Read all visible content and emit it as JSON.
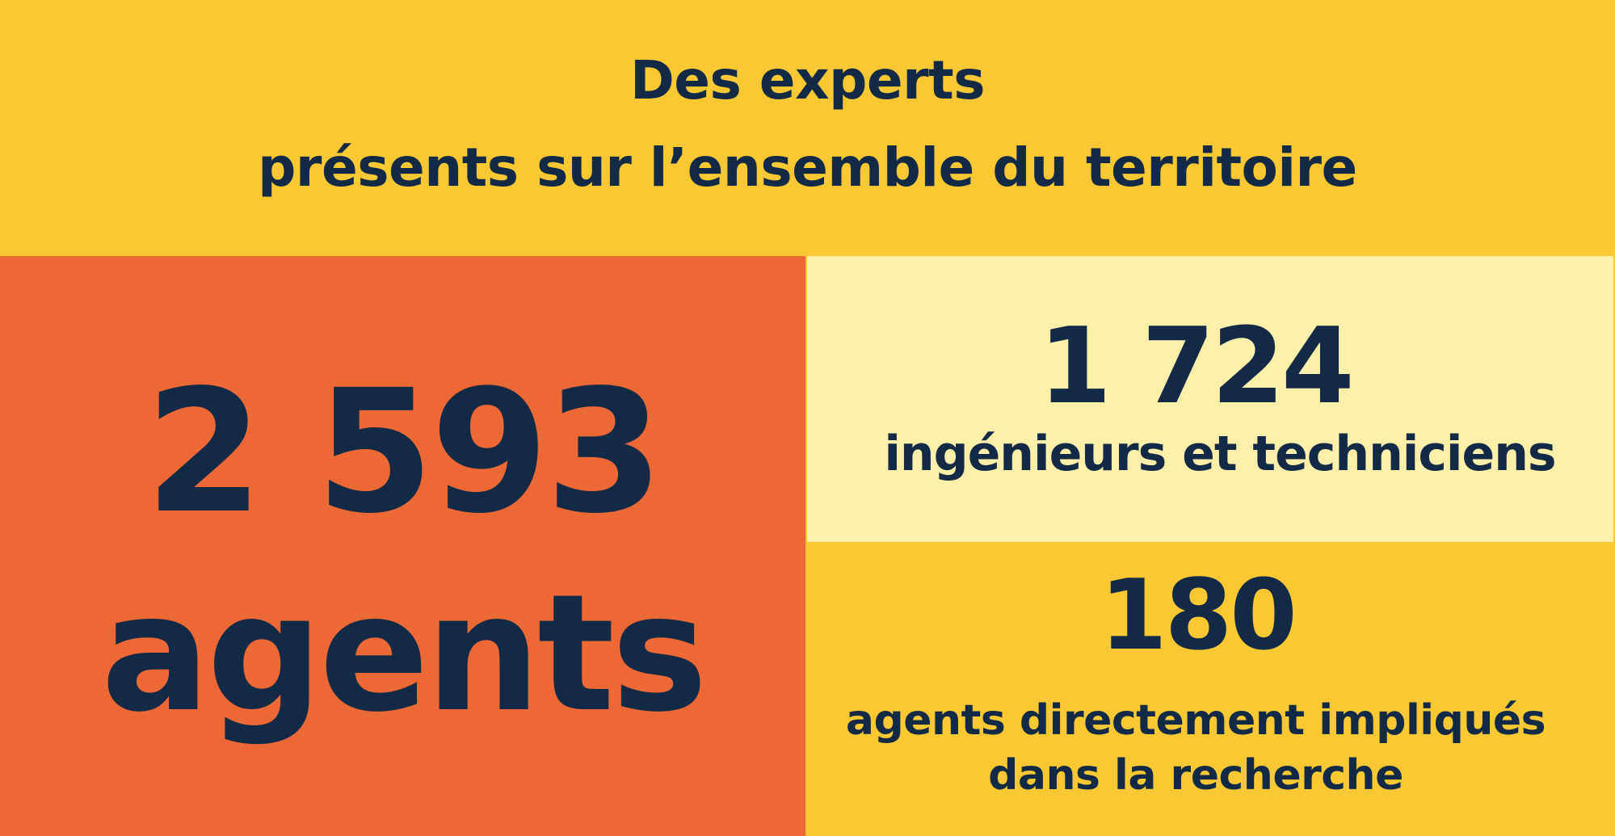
{
  "header": {
    "line1": "Des experts",
    "line2": "présents sur l’ensemble du territoire"
  },
  "agents": {
    "number": "2 593",
    "label": "agents"
  },
  "engineers": {
    "number": "1 724",
    "label": "ingénieurs et techniciens"
  },
  "research": {
    "number": "180",
    "label_line1": "agents directement impliqués",
    "label_line2": "dans la recherche"
  },
  "colors": {
    "yellow": "#F9C833",
    "orange": "#EC6834",
    "cream": "#FEF0AA",
    "navy": "#132A47"
  }
}
